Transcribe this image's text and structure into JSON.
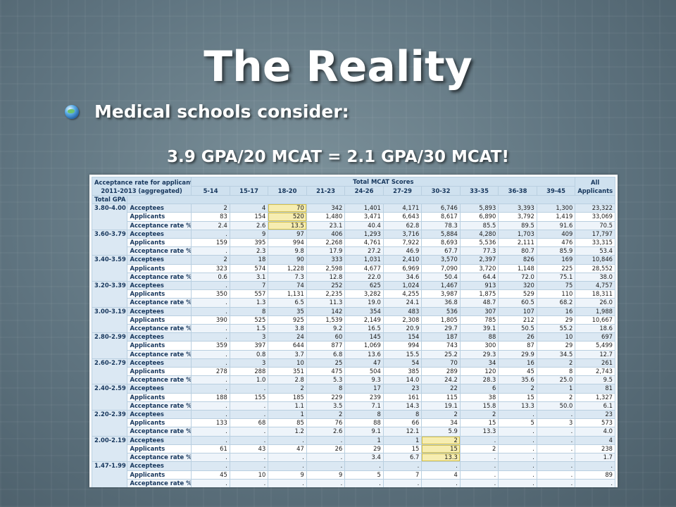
{
  "slide": {
    "title": "The Reality",
    "bullet": "Medical schools consider:",
    "equation": "3.9 GPA/20 MCAT = 2.1 GPA/30 MCAT!"
  },
  "table": {
    "caption_line1": "Acceptance rate for applicants,",
    "caption_line2": "2011-2013 (aggregated)",
    "total_mcat_header": "Total MCAT Scores",
    "all_header_line1": "All",
    "all_header_line2": "Applicants",
    "score_columns": [
      "5-14",
      "15-17",
      "18-20",
      "21-23",
      "24-26",
      "27-29",
      "30-32",
      "33-35",
      "36-38",
      "39-45"
    ],
    "total_gpa_label": "Total GPA",
    "row_labels": [
      "Acceptees",
      "Applicants",
      "Acceptance rate %"
    ],
    "groups": [
      {
        "gpa": "3.80-4.00",
        "acceptees": [
          "2",
          "4",
          "70",
          "342",
          "1,401",
          "4,171",
          "6,746",
          "5,893",
          "3,393",
          "1,300",
          "23,322"
        ],
        "applicants": [
          "83",
          "154",
          "520",
          "1,480",
          "3,471",
          "6,643",
          "8,617",
          "6,890",
          "3,792",
          "1,419",
          "33,069"
        ],
        "rate": [
          "2.4",
          "2.6",
          "13.5",
          "23.1",
          "40.4",
          "62.8",
          "78.3",
          "85.5",
          "89.5",
          "91.6",
          "70.5"
        ]
      },
      {
        "gpa": "3.60-3.79",
        "acceptees": [
          ".",
          "9",
          "97",
          "406",
          "1,293",
          "3,716",
          "5,884",
          "4,280",
          "1,703",
          "409",
          "17,797"
        ],
        "applicants": [
          "159",
          "395",
          "994",
          "2,268",
          "4,761",
          "7,922",
          "8,693",
          "5,536",
          "2,111",
          "476",
          "33,315"
        ],
        "rate": [
          ".",
          "2.3",
          "9.8",
          "17.9",
          "27.2",
          "46.9",
          "67.7",
          "77.3",
          "80.7",
          "85.9",
          "53.4"
        ]
      },
      {
        "gpa": "3.40-3.59",
        "acceptees": [
          "2",
          "18",
          "90",
          "333",
          "1,031",
          "2,410",
          "3,570",
          "2,397",
          "826",
          "169",
          "10,846"
        ],
        "applicants": [
          "323",
          "574",
          "1,228",
          "2,598",
          "4,677",
          "6,969",
          "7,090",
          "3,720",
          "1,148",
          "225",
          "28,552"
        ],
        "rate": [
          "0.6",
          "3.1",
          "7.3",
          "12.8",
          "22.0",
          "34.6",
          "50.4",
          "64.4",
          "72.0",
          "75.1",
          "38.0"
        ]
      },
      {
        "gpa": "3.20-3.39",
        "acceptees": [
          ".",
          "7",
          "74",
          "252",
          "625",
          "1,024",
          "1,467",
          "913",
          "320",
          "75",
          "4,757"
        ],
        "applicants": [
          "350",
          "557",
          "1,131",
          "2,235",
          "3,282",
          "4,255",
          "3,987",
          "1,875",
          "529",
          "110",
          "18,311"
        ],
        "rate": [
          ".",
          "1.3",
          "6.5",
          "11.3",
          "19.0",
          "24.1",
          "36.8",
          "48.7",
          "60.5",
          "68.2",
          "26.0"
        ]
      },
      {
        "gpa": "3.00-3.19",
        "acceptees": [
          ".",
          "8",
          "35",
          "142",
          "354",
          "483",
          "536",
          "307",
          "107",
          "16",
          "1,988"
        ],
        "applicants": [
          "390",
          "525",
          "925",
          "1,539",
          "2,149",
          "2,308",
          "1,805",
          "785",
          "212",
          "29",
          "10,667"
        ],
        "rate": [
          ".",
          "1.5",
          "3.8",
          "9.2",
          "16.5",
          "20.9",
          "29.7",
          "39.1",
          "50.5",
          "55.2",
          "18.6"
        ]
      },
      {
        "gpa": "2.80-2.99",
        "acceptees": [
          ".",
          "3",
          "24",
          "60",
          "145",
          "154",
          "187",
          "88",
          "26",
          "10",
          "697"
        ],
        "applicants": [
          "359",
          "397",
          "644",
          "877",
          "1,069",
          "994",
          "743",
          "300",
          "87",
          "29",
          "5,499"
        ],
        "rate": [
          ".",
          "0.8",
          "3.7",
          "6.8",
          "13.6",
          "15.5",
          "25.2",
          "29.3",
          "29.9",
          "34.5",
          "12.7"
        ]
      },
      {
        "gpa": "2.60-2.79",
        "acceptees": [
          ".",
          "3",
          "10",
          "25",
          "47",
          "54",
          "70",
          "34",
          "16",
          "2",
          "261"
        ],
        "applicants": [
          "278",
          "288",
          "351",
          "475",
          "504",
          "385",
          "289",
          "120",
          "45",
          "8",
          "2,743"
        ],
        "rate": [
          ".",
          "1.0",
          "2.8",
          "5.3",
          "9.3",
          "14.0",
          "24.2",
          "28.3",
          "35.6",
          "25.0",
          "9.5"
        ]
      },
      {
        "gpa": "2.40-2.59",
        "acceptees": [
          ".",
          ".",
          "2",
          "8",
          "17",
          "23",
          "22",
          "6",
          "2",
          "1",
          "81"
        ],
        "applicants": [
          "188",
          "155",
          "185",
          "229",
          "239",
          "161",
          "115",
          "38",
          "15",
          "2",
          "1,327"
        ],
        "rate": [
          ".",
          ".",
          "1.1",
          "3.5",
          "7.1",
          "14.3",
          "19.1",
          "15.8",
          "13.3",
          "50.0",
          "6.1"
        ]
      },
      {
        "gpa": "2.20-2.39",
        "acceptees": [
          ".",
          ".",
          "1",
          "2",
          "8",
          "8",
          "2",
          "2",
          ".",
          ".",
          "23"
        ],
        "applicants": [
          "133",
          "68",
          "85",
          "76",
          "88",
          "66",
          "34",
          "15",
          "5",
          "3",
          "573"
        ],
        "rate": [
          ".",
          ".",
          "1.2",
          "2.6",
          "9.1",
          "12.1",
          "5.9",
          "13.3",
          ".",
          ".",
          "4.0"
        ]
      },
      {
        "gpa": "2.00-2.19",
        "acceptees": [
          ".",
          ".",
          ".",
          ".",
          "1",
          "1",
          "2",
          ".",
          ".",
          ".",
          "4"
        ],
        "applicants": [
          "61",
          "43",
          "47",
          "26",
          "29",
          "15",
          "15",
          "2",
          ".",
          ".",
          "238"
        ],
        "rate": [
          ".",
          ".",
          ".",
          ".",
          "3.4",
          "6.7",
          "13.3",
          ".",
          ".",
          ".",
          "1.7"
        ]
      },
      {
        "gpa": "1.47-1.99",
        "acceptees": [
          ".",
          ".",
          ".",
          ".",
          ".",
          ".",
          ".",
          ".",
          ".",
          ".",
          "."
        ],
        "applicants": [
          "45",
          "10",
          "9",
          "9",
          "5",
          "7",
          "4",
          ".",
          ".",
          ".",
          "89"
        ],
        "rate": [
          ".",
          ".",
          ".",
          ".",
          ".",
          ".",
          ".",
          ".",
          ".",
          ".",
          "."
        ]
      }
    ]
  }
}
